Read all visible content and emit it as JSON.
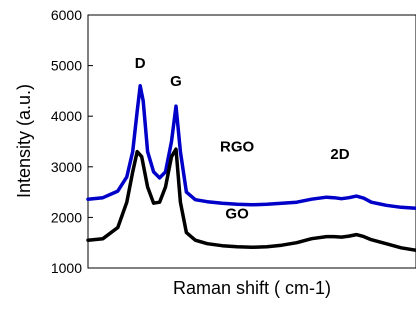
{
  "chart_data": {
    "type": "line",
    "xlabel": "Raman shift ( cm-1)",
    "ylabel": "Intensity (a.u.)",
    "ylim": [
      1000,
      6000
    ],
    "xlim": [
      1000,
      3200
    ],
    "yticks": [
      1000,
      2000,
      3000,
      4000,
      5000,
      6000
    ],
    "x_tick_labels_shown": false,
    "grid": false,
    "annotations": [
      {
        "text": "D",
        "x": 1350,
        "y": 4950
      },
      {
        "text": "G",
        "x": 1590,
        "y": 4600
      },
      {
        "text": "RGO",
        "x": 2000,
        "y": 3300
      },
      {
        "text": "2D",
        "x": 2690,
        "y": 3150
      },
      {
        "text": "GO",
        "x": 2000,
        "y": 1980
      }
    ],
    "series": [
      {
        "name": "RGO",
        "color": "#0000c8",
        "points": [
          [
            1000,
            2360
          ],
          [
            1100,
            2390
          ],
          [
            1200,
            2520
          ],
          [
            1260,
            2800
          ],
          [
            1300,
            3300
          ],
          [
            1330,
            4100
          ],
          [
            1350,
            4600
          ],
          [
            1370,
            4300
          ],
          [
            1400,
            3300
          ],
          [
            1440,
            2900
          ],
          [
            1480,
            2780
          ],
          [
            1520,
            2900
          ],
          [
            1560,
            3500
          ],
          [
            1590,
            4200
          ],
          [
            1620,
            3300
          ],
          [
            1660,
            2500
          ],
          [
            1720,
            2350
          ],
          [
            1800,
            2310
          ],
          [
            1900,
            2280
          ],
          [
            2000,
            2260
          ],
          [
            2100,
            2250
          ],
          [
            2200,
            2260
          ],
          [
            2300,
            2280
          ],
          [
            2400,
            2300
          ],
          [
            2500,
            2360
          ],
          [
            2600,
            2400
          ],
          [
            2650,
            2390
          ],
          [
            2700,
            2370
          ],
          [
            2750,
            2390
          ],
          [
            2800,
            2420
          ],
          [
            2850,
            2380
          ],
          [
            2900,
            2300
          ],
          [
            3000,
            2240
          ],
          [
            3100,
            2200
          ],
          [
            3200,
            2180
          ]
        ]
      },
      {
        "name": "GO",
        "color": "#000000",
        "points": [
          [
            1000,
            1550
          ],
          [
            1100,
            1580
          ],
          [
            1200,
            1800
          ],
          [
            1260,
            2300
          ],
          [
            1300,
            2900
          ],
          [
            1330,
            3300
          ],
          [
            1360,
            3200
          ],
          [
            1400,
            2600
          ],
          [
            1440,
            2280
          ],
          [
            1480,
            2300
          ],
          [
            1520,
            2600
          ],
          [
            1560,
            3200
          ],
          [
            1590,
            3350
          ],
          [
            1620,
            2300
          ],
          [
            1660,
            1700
          ],
          [
            1720,
            1550
          ],
          [
            1800,
            1480
          ],
          [
            1900,
            1440
          ],
          [
            2000,
            1420
          ],
          [
            2100,
            1410
          ],
          [
            2200,
            1420
          ],
          [
            2300,
            1450
          ],
          [
            2400,
            1500
          ],
          [
            2500,
            1580
          ],
          [
            2600,
            1620
          ],
          [
            2650,
            1620
          ],
          [
            2700,
            1610
          ],
          [
            2750,
            1630
          ],
          [
            2800,
            1660
          ],
          [
            2850,
            1620
          ],
          [
            2900,
            1560
          ],
          [
            3000,
            1480
          ],
          [
            3100,
            1400
          ],
          [
            3200,
            1350
          ]
        ]
      }
    ]
  }
}
